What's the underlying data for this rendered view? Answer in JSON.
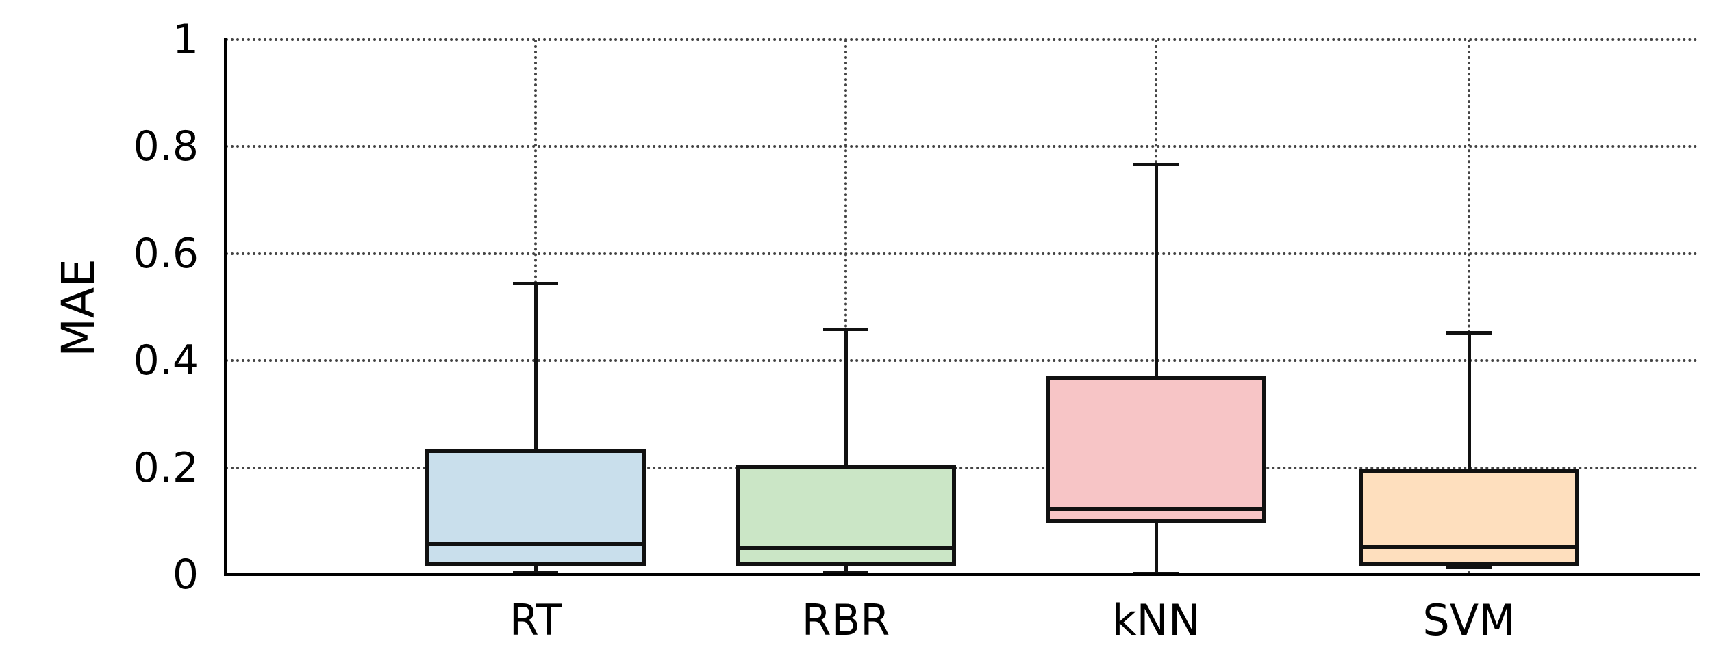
{
  "chart_data": {
    "type": "box",
    "title": "",
    "xlabel": "",
    "ylabel": "MAE",
    "categories": [
      "RT",
      "RBR",
      "kNN",
      "SVM"
    ],
    "ylim": [
      0,
      1
    ],
    "yticks": [
      0,
      0.2,
      0.4,
      0.6,
      0.8,
      1
    ],
    "ytick_labels": [
      "0",
      "0.2",
      "0.4",
      "0.6",
      "0.8",
      "1"
    ],
    "grid": {
      "horizontal": true,
      "vertical": true,
      "style": "dotted"
    },
    "legend": "none",
    "outliers": "none",
    "series": [
      {
        "name": "RT",
        "whisker_low": 0.003,
        "q1": 0.021,
        "median": 0.058,
        "q3": 0.232,
        "whisker_high": 0.544,
        "fill_color": "#c9dfec"
      },
      {
        "name": "RBR",
        "whisker_low": 0.003,
        "q1": 0.021,
        "median": 0.05,
        "q3": 0.202,
        "whisker_high": 0.458,
        "fill_color": "#cbe6c6"
      },
      {
        "name": "kNN",
        "whisker_low": 0.002,
        "q1": 0.101,
        "median": 0.123,
        "q3": 0.367,
        "whisker_high": 0.766,
        "fill_color": "#f7c5c6"
      },
      {
        "name": "SVM",
        "whisker_low": 0.013,
        "q1": 0.021,
        "median": 0.052,
        "q3": 0.194,
        "whisker_high": 0.452,
        "fill_color": "#fedfbe"
      }
    ],
    "colors": {
      "box_edge": "#111111",
      "median": "#111111",
      "whisker": "#111111",
      "axis": "#000000",
      "grid": "#444444",
      "text": "#000000",
      "background": "#ffffff"
    }
  }
}
